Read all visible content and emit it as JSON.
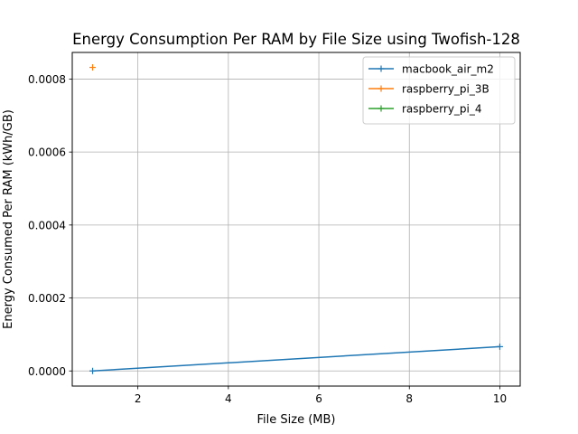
{
  "chart_data": {
    "type": "line",
    "title": "Energy Consumption Per RAM by File Size using Twofish-128",
    "xlabel": "File Size (MB)",
    "ylabel": "Energy Consumed Per RAM (kWh/GB)",
    "xlim": [
      0.55,
      10.45
    ],
    "ylim": [
      -4.15e-05,
      0.000873
    ],
    "xticks": [
      2,
      4,
      6,
      8,
      10
    ],
    "xtick_labels": [
      "2",
      "4",
      "6",
      "8",
      "10"
    ],
    "yticks": [
      0,
      0.0002,
      0.0004,
      0.0006,
      0.0008
    ],
    "ytick_labels": [
      "0.0000",
      "0.0002",
      "0.0004",
      "0.0006",
      "0.0008"
    ],
    "grid": true,
    "legend_position": "top-right",
    "series": [
      {
        "name": "macbook_air_m2",
        "color": "#1f77b4",
        "x": [
          1,
          10
        ],
        "y": [
          0.0,
          6.65e-05
        ]
      },
      {
        "name": "raspberry_pi_3B",
        "color": "#ff7f0e",
        "x": [
          1
        ],
        "y": [
          0.000832
        ]
      },
      {
        "name": "raspberry_pi_4",
        "color": "#2ca02c",
        "x": [],
        "y": []
      }
    ]
  }
}
